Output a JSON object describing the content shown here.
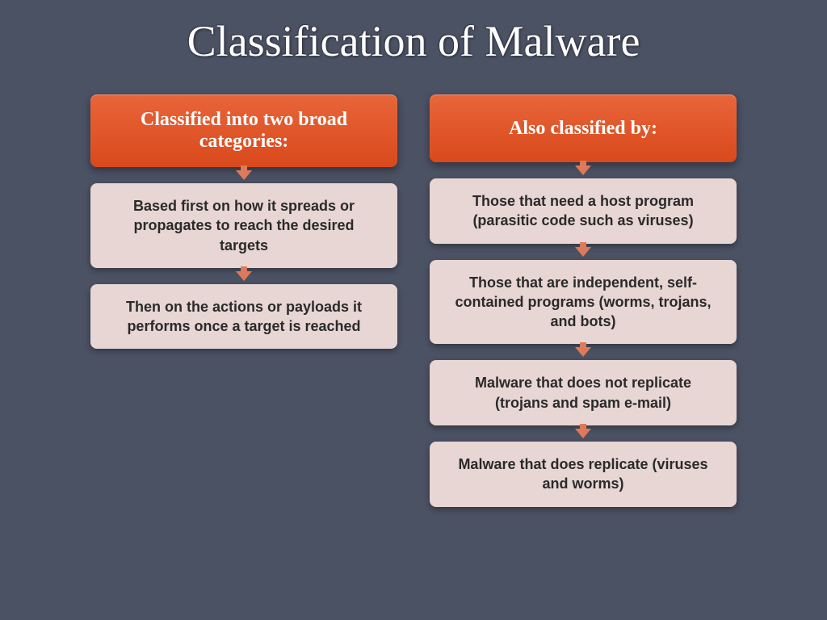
{
  "title": "Classification of Malware",
  "background_color": "#4b5264",
  "title_color": "#ffffff",
  "title_fontsize": 54,
  "header_gradient_top": "#e8653a",
  "header_gradient_bottom": "#d9491b",
  "header_text_color": "#ffffff",
  "header_fontsize": 24,
  "content_bg": "#e7d6d4",
  "content_text_color": "#2a2a2a",
  "content_fontsize": 18,
  "arrow_color": "#dd7a5a",
  "columns": [
    {
      "header": "Classified into two broad categories:",
      "items": [
        "Based first on how it spreads or propagates to reach the desired targets",
        "Then on the actions or payloads it performs once a target is reached"
      ]
    },
    {
      "header": "Also classified by:",
      "items": [
        "Those that need a host program (parasitic code such as viruses)",
        "Those that are independent, self-contained programs (worms, trojans, and bots)",
        "Malware that does not replicate (trojans and spam e-mail)",
        "Malware that does replicate (viruses and worms)"
      ]
    }
  ]
}
